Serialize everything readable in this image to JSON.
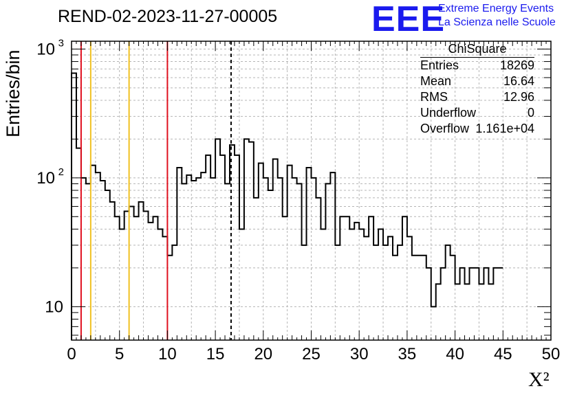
{
  "title": "REND-02-2023-11-27-00005",
  "logo": {
    "mark": "EEE",
    "line1": "Extreme Energy Events",
    "line2": "La Scienza nelle Scuole",
    "color": "#1a1aee"
  },
  "stats": {
    "name": "ChiSquare",
    "rows": [
      {
        "label": "Entries",
        "value": "18269"
      },
      {
        "label": "Mean",
        "value": "16.64"
      },
      {
        "label": "RMS",
        "value": "12.96"
      },
      {
        "label": "Underflow",
        "value": "0"
      },
      {
        "label": "Overflow",
        "value": "1.161e+04"
      }
    ]
  },
  "chart_data": {
    "type": "histogram",
    "ylabel": "Entries/bin",
    "xlabel": "X²",
    "xlim": [
      0,
      50
    ],
    "ylim": [
      5.5,
      1150
    ],
    "yscale": "log",
    "xticks": [
      "0",
      "5",
      "10",
      "15",
      "20",
      "25",
      "30",
      "35",
      "40",
      "45",
      "50"
    ],
    "yticks": [
      {
        "value": 10,
        "label": "10"
      },
      {
        "value": 100,
        "label": "10",
        "exp": "2"
      },
      {
        "value": 1000,
        "label": "10",
        "exp": "3"
      }
    ],
    "grid": true,
    "bin_width": 0.5,
    "values": [
      650,
      170,
      100,
      90,
      125,
      110,
      95,
      80,
      65,
      50,
      40,
      55,
      60,
      50,
      65,
      55,
      45,
      50,
      40,
      35,
      25,
      30,
      120,
      90,
      105,
      95,
      100,
      110,
      150,
      100,
      200,
      150,
      90,
      180,
      150,
      40,
      200,
      190,
      70,
      130,
      100,
      80,
      140,
      100,
      50,
      125,
      100,
      90,
      30,
      120,
      100,
      70,
      40,
      90,
      110,
      30,
      50,
      50,
      40,
      45,
      40,
      35,
      50,
      30,
      40,
      30,
      35,
      25,
      30,
      50,
      35,
      25,
      25,
      25,
      20,
      10,
      15,
      20,
      30,
      25,
      15,
      20,
      15,
      20,
      20,
      15,
      20,
      15,
      20,
      20
    ],
    "vlines": [
      {
        "x": 1,
        "color": "#e0101e",
        "style": "solid"
      },
      {
        "x": 2,
        "color": "#f0c020",
        "style": "solid"
      },
      {
        "x": 6,
        "color": "#f0c020",
        "style": "solid"
      },
      {
        "x": 10,
        "color": "#e0101e",
        "style": "solid"
      },
      {
        "x": 16.64,
        "color": "#000000",
        "style": "dashed"
      }
    ]
  }
}
